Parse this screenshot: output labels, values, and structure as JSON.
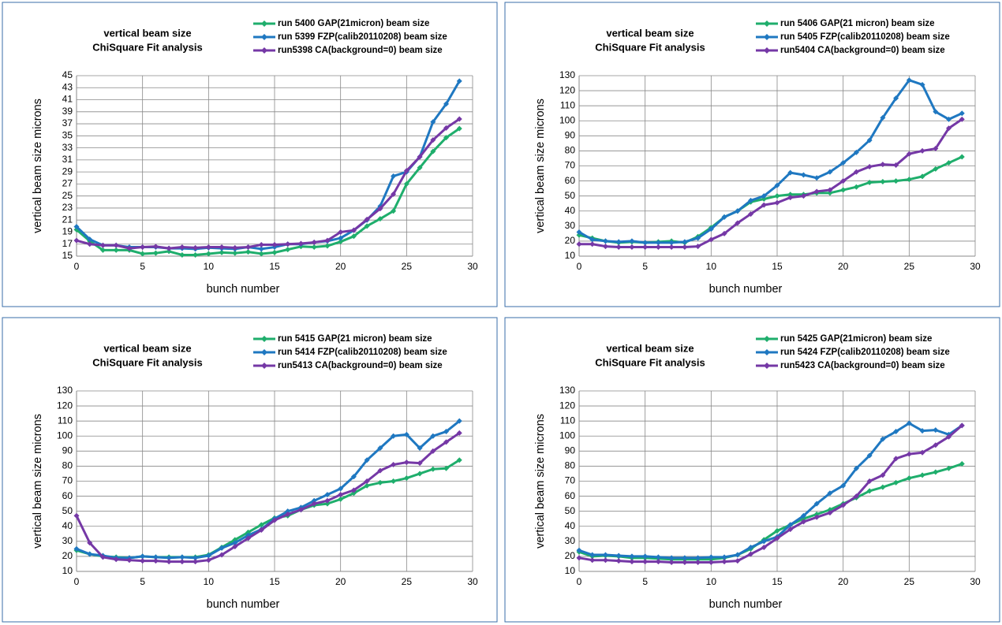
{
  "chart_data": [
    {
      "type": "line",
      "title": "vertical beam size",
      "subtitle": "ChiSquare Fit analysis",
      "x_label": "bunch number",
      "y_label": "vertical beam size microns",
      "x": [
        0,
        1,
        2,
        3,
        4,
        5,
        6,
        7,
        8,
        9,
        10,
        11,
        12,
        13,
        14,
        15,
        16,
        17,
        18,
        19,
        20,
        21,
        22,
        23,
        24,
        25,
        26,
        27,
        28,
        29
      ],
      "xlim": [
        0,
        30
      ],
      "xticks": [
        0,
        5,
        10,
        15,
        20,
        25,
        30
      ],
      "ylim": [
        15,
        45
      ],
      "yticks": [
        15,
        17,
        19,
        21,
        23,
        25,
        27,
        29,
        31,
        33,
        35,
        37,
        39,
        41,
        43,
        45
      ],
      "grid": true,
      "series": [
        {
          "name": "run 5400 GAP(21micron) beam size",
          "color": "#1fae6c",
          "values": [
            19.4,
            17.5,
            16.0,
            16.0,
            16.0,
            15.4,
            15.5,
            15.8,
            15.2,
            15.2,
            15.4,
            15.6,
            15.5,
            15.7,
            15.4,
            15.6,
            16.1,
            16.6,
            16.5,
            16.7,
            17.4,
            18.3,
            20.0,
            21.2,
            22.5,
            27.0,
            29.7,
            32.4,
            34.7,
            36.2
          ]
        },
        {
          "name": "run 5399 FZP(calib20110208) beam size",
          "color": "#1f78c1",
          "values": [
            19.9,
            17.8,
            16.8,
            16.8,
            16.5,
            16.5,
            16.5,
            16.3,
            16.3,
            16.2,
            16.4,
            16.3,
            16.2,
            16.5,
            16.2,
            16.5,
            17.0,
            17.0,
            17.3,
            17.5,
            18.0,
            19.3,
            21.0,
            23.3,
            28.3,
            29.0,
            31.5,
            37.3,
            40.3,
            44.1
          ]
        },
        {
          "name": "run5398 CA(background=0) beam size",
          "color": "#7538a6",
          "values": [
            17.6,
            17.0,
            16.8,
            16.8,
            16.3,
            16.5,
            16.6,
            16.3,
            16.5,
            16.4,
            16.5,
            16.5,
            16.4,
            16.5,
            16.9,
            16.9,
            17.0,
            17.1,
            17.3,
            17.6,
            19.0,
            19.3,
            21.1,
            22.9,
            25.3,
            29.2,
            31.5,
            34.3,
            36.3,
            37.8
          ]
        }
      ]
    },
    {
      "type": "line",
      "title": "vertical beam size",
      "subtitle": "ChiSquare Fit analysis",
      "x_label": "bunch number",
      "y_label": "vertical beam size microns",
      "x": [
        0,
        1,
        2,
        3,
        4,
        5,
        6,
        7,
        8,
        9,
        10,
        11,
        12,
        13,
        14,
        15,
        16,
        17,
        18,
        19,
        20,
        21,
        22,
        23,
        24,
        25,
        26,
        27,
        28,
        29
      ],
      "xlim": [
        0,
        30
      ],
      "xticks": [
        0,
        5,
        10,
        15,
        20,
        25,
        30
      ],
      "ylim": [
        10,
        130
      ],
      "yticks": [
        10,
        20,
        30,
        40,
        50,
        60,
        70,
        80,
        90,
        100,
        110,
        120,
        130
      ],
      "grid": true,
      "series": [
        {
          "name": "run 5406 GAP(21 micron) beam size",
          "color": "#1fae6c",
          "values": [
            24,
            22,
            20,
            19,
            19.5,
            19,
            19.5,
            20,
            19,
            23,
            29,
            36,
            40,
            46,
            48,
            50,
            51,
            51,
            52,
            52,
            54,
            56,
            59,
            59.5,
            60,
            61,
            63,
            68,
            72,
            76
          ]
        },
        {
          "name": "run 5405 FZP(calib20110208) beam size",
          "color": "#1f78c1",
          "values": [
            26,
            21,
            20,
            19.5,
            20,
            19,
            19,
            19,
            19.5,
            22,
            28,
            36,
            40,
            47,
            50,
            57,
            65.5,
            64,
            62,
            66,
            72,
            79,
            87,
            102,
            115,
            127,
            124,
            106,
            101,
            105
          ]
        },
        {
          "name": "run5404 CA(background=0) beam size",
          "color": "#7538a6",
          "values": [
            18,
            18,
            16.5,
            16,
            16,
            16,
            16,
            16,
            16,
            16.5,
            21,
            25,
            32,
            38,
            44,
            45.5,
            49,
            50,
            53,
            54,
            60,
            66,
            69.5,
            71,
            70.5,
            78,
            80,
            81.5,
            95,
            101
          ]
        }
      ]
    },
    {
      "type": "line",
      "title": "vertical beam size",
      "subtitle": "ChiSquare Fit analysis",
      "x_label": "bunch number",
      "y_label": "vertical beam size microns",
      "x": [
        0,
        1,
        2,
        3,
        4,
        5,
        6,
        7,
        8,
        9,
        10,
        11,
        12,
        13,
        14,
        15,
        16,
        17,
        18,
        19,
        20,
        21,
        22,
        23,
        24,
        25,
        26,
        27,
        28,
        29
      ],
      "xlim": [
        0,
        30
      ],
      "xticks": [
        0,
        5,
        10,
        15,
        20,
        25,
        30
      ],
      "ylim": [
        10,
        130
      ],
      "yticks": [
        10,
        20,
        30,
        40,
        50,
        60,
        70,
        80,
        90,
        100,
        110,
        120,
        130
      ],
      "grid": true,
      "series": [
        {
          "name": "run 5415 GAP(21 micron) beam size",
          "color": "#1fae6c",
          "values": [
            24,
            21.5,
            20,
            19.5,
            19,
            20,
            19.5,
            19.5,
            19.5,
            19.5,
            21,
            26,
            31,
            36,
            41,
            45.5,
            47,
            51,
            54,
            55,
            58,
            62,
            67,
            69,
            70,
            72,
            75,
            78,
            78.5,
            84
          ]
        },
        {
          "name": "run 5414 FZP(calib20110208) beam size",
          "color": "#1f78c1",
          "values": [
            25,
            21.5,
            20.5,
            19,
            19,
            20,
            19.5,
            19,
            19.5,
            19,
            20.5,
            25.5,
            29,
            34,
            38,
            45,
            50,
            52.5,
            57,
            61,
            65,
            73,
            84,
            92,
            100,
            101,
            92,
            100,
            103,
            110
          ]
        },
        {
          "name": "run5413 CA(background=0) beam size",
          "color": "#7538a6",
          "values": [
            47,
            29,
            19.5,
            18,
            17.5,
            17,
            17,
            16.5,
            16.5,
            16.5,
            17.5,
            21,
            26.5,
            32,
            37.5,
            44,
            48,
            51,
            55,
            57,
            61,
            64,
            70,
            77,
            81,
            82.5,
            82,
            90,
            96,
            102
          ]
        }
      ]
    },
    {
      "type": "line",
      "title": "vertical beam size",
      "subtitle": "ChiSquare Fit analysis",
      "x_label": "bunch number",
      "y_label": "vertical beam size microns",
      "x": [
        0,
        1,
        2,
        3,
        4,
        5,
        6,
        7,
        8,
        9,
        10,
        11,
        12,
        13,
        14,
        15,
        16,
        17,
        18,
        19,
        20,
        21,
        22,
        23,
        24,
        25,
        26,
        27,
        28,
        29
      ],
      "xlim": [
        0,
        30
      ],
      "xticks": [
        0,
        5,
        10,
        15,
        20,
        25,
        30
      ],
      "ylim": [
        10,
        130
      ],
      "yticks": [
        10,
        20,
        30,
        40,
        50,
        60,
        70,
        80,
        90,
        100,
        110,
        120,
        130
      ],
      "grid": true,
      "series": [
        {
          "name": "run 5425 GAP(21micron) beam size",
          "color": "#1fae6c",
          "values": [
            23,
            20,
            20.5,
            20,
            19,
            19,
            18.5,
            18,
            18,
            18,
            18,
            19,
            21,
            25,
            31,
            37,
            41,
            45,
            48,
            51,
            55,
            59,
            63.5,
            66,
            69,
            72,
            74,
            76,
            78.5,
            81.5
          ]
        },
        {
          "name": "run 5424 FZP(calib20110208) beam size",
          "color": "#1f78c1",
          "values": [
            24,
            21,
            21,
            20.5,
            20,
            20,
            19.5,
            19,
            19,
            19,
            19.5,
            19.5,
            21,
            26,
            30,
            33,
            41,
            47,
            55,
            62,
            67,
            78.5,
            87,
            98,
            103,
            108.5,
            103.5,
            104,
            101,
            107
          ]
        },
        {
          "name": "run5423 CA(background=0) beam size",
          "color": "#7538a6",
          "values": [
            19,
            17.5,
            17.5,
            17,
            16.5,
            16.5,
            16.5,
            16,
            16,
            16,
            16,
            16.5,
            17,
            21.5,
            26,
            32,
            38,
            43,
            46,
            49,
            54,
            60,
            70,
            74,
            85,
            88,
            89,
            94,
            99.5,
            107
          ]
        }
      ]
    }
  ]
}
